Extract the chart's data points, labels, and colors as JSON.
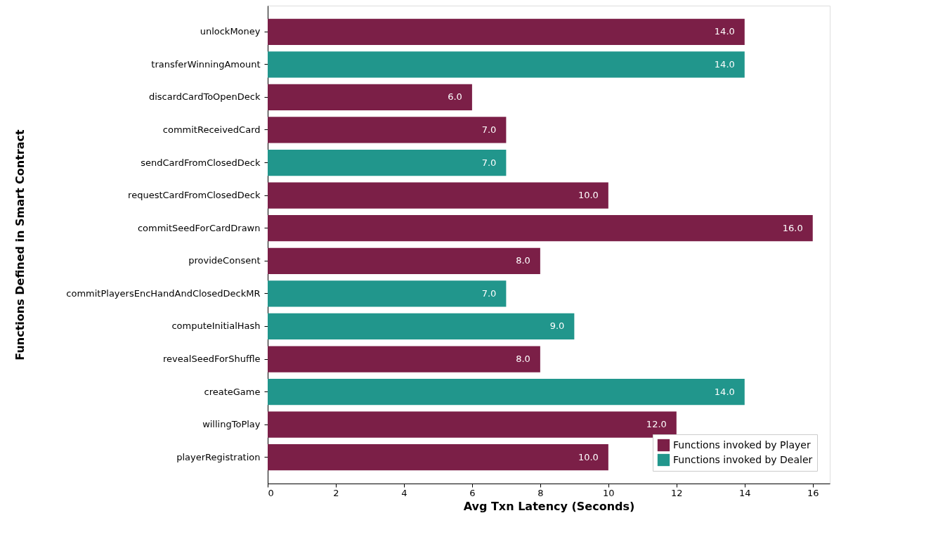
{
  "chart_data": {
    "type": "bar",
    "orientation": "horizontal",
    "xlabel": "Avg Txn Latency (Seconds)",
    "ylabel": "Functions Defined in Smart Contract",
    "categories": [
      "unlockMoney",
      "transferWinningAmount",
      "discardCardToOpenDeck",
      "commitReceivedCard",
      "sendCardFromClosedDeck",
      "requestCardFromClosedDeck",
      "commitSeedForCardDrawn",
      "provideConsent",
      "commitPlayersEncHandAndClosedDeckMR",
      "computeInitialHash",
      "revealSeedForShuffle",
      "createGame",
      "willingToPlay",
      "playerRegistration"
    ],
    "series": [
      {
        "name": "Functions invoked by Player",
        "color": "#7b1f47",
        "values": [
          14.0,
          null,
          6.0,
          7.0,
          null,
          10.0,
          16.0,
          8.0,
          null,
          null,
          8.0,
          null,
          12.0,
          10.0
        ],
        "value_labels": [
          "14.0",
          null,
          "6.0",
          "7.0",
          null,
          "10.0",
          "16.0",
          "8.0",
          null,
          null,
          "8.0",
          null,
          "12.0",
          "10.0"
        ]
      },
      {
        "name": "Functions invoked by Dealer",
        "color": "#21968c",
        "values": [
          null,
          14.0,
          null,
          null,
          7.0,
          null,
          null,
          null,
          7.0,
          9.0,
          null,
          14.0,
          null,
          null
        ],
        "value_labels": [
          null,
          "14.0",
          null,
          null,
          "7.0",
          null,
          null,
          null,
          "7.0",
          "9.0",
          null,
          "14.0",
          null,
          null
        ]
      }
    ],
    "xlim": [
      0,
      16.5
    ],
    "xticks": [
      0,
      2,
      4,
      6,
      8,
      10,
      12,
      14,
      16
    ],
    "grid": false,
    "legend": "bottom right"
  }
}
